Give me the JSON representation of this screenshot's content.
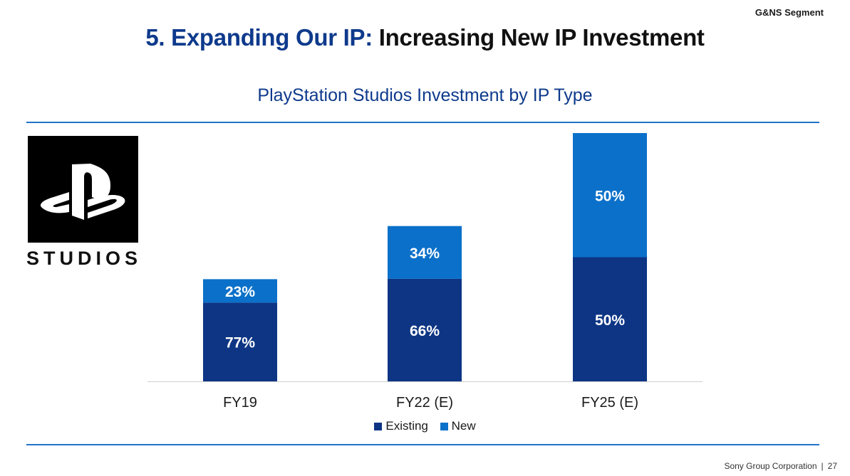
{
  "header": {
    "segment": "G&NS Segment",
    "title_prefix": "5. Expanding Our IP:",
    "title_main": "Increasing New IP Investment"
  },
  "logo": {
    "wordmark": "STUDIOS",
    "icon": "playstation-logo-icon"
  },
  "colors": {
    "existing": "#0d3584",
    "new": "#0b70c9",
    "rule": "#1f74c6",
    "title_blue": "#0e3a8c"
  },
  "chart_data": {
    "type": "bar",
    "stacked": true,
    "title": "PlayStation Studios Investment by IP Type",
    "categories": [
      "FY19",
      "FY22 (E)",
      "FY25 (E)"
    ],
    "relative_totals": [
      1.0,
      1.52,
      2.43
    ],
    "series": [
      {
        "name": "Existing",
        "values": [
          77,
          66,
          50
        ],
        "labels": [
          "77%",
          "66%",
          "50%"
        ]
      },
      {
        "name": "New",
        "values": [
          23,
          34,
          50
        ],
        "labels": [
          "23%",
          "34%",
          "50%"
        ]
      }
    ],
    "xlabel": "",
    "ylabel": "",
    "legend": "bottom-center"
  },
  "legend": {
    "existing": "Existing",
    "new": "New"
  },
  "footer": {
    "company": "Sony Group Corporation",
    "separator": "|",
    "page": "27"
  }
}
